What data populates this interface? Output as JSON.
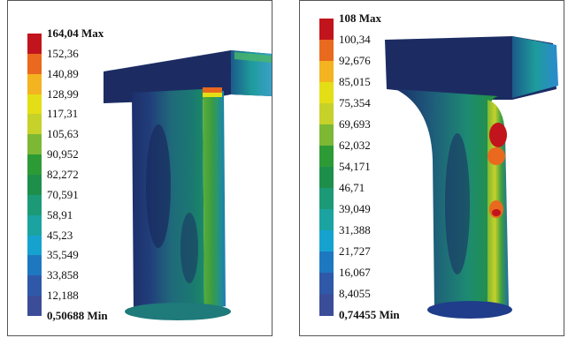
{
  "left": {
    "colors": [
      "#3b4d99",
      "#2f59a8",
      "#1e78c0",
      "#16a2cf",
      "#1aa3a0",
      "#1c9a78",
      "#1e8f4a",
      "#2d9b35",
      "#7cb834",
      "#c6d12a",
      "#e4de16",
      "#f4b320",
      "#e9691e",
      "#c2141c"
    ],
    "labels": [
      "164,04 Max",
      "152,36",
      "140,89",
      "128,99",
      "117,31",
      "105,63",
      "90,952",
      "82,272",
      "70,591",
      "58,91",
      "45,23",
      "35,549",
      "33,858",
      "12,188",
      "0,50688 Min"
    ]
  },
  "right": {
    "colors": [
      "#3b4d99",
      "#2f59a8",
      "#1e78c0",
      "#16a2cf",
      "#1aa3a0",
      "#1c9a78",
      "#1e8f4a",
      "#2d9b35",
      "#7cb834",
      "#c6d12a",
      "#e4de16",
      "#f4b320",
      "#e9691e",
      "#c2141c"
    ],
    "labels": [
      "108 Max",
      "100,34",
      "92,676",
      "85,015",
      "75,354",
      "69,693",
      "62,032",
      "54,171",
      "46,71",
      "39,049",
      "31,388",
      "21,727",
      "16,067",
      "8,4055",
      "0,74455 Min"
    ]
  }
}
